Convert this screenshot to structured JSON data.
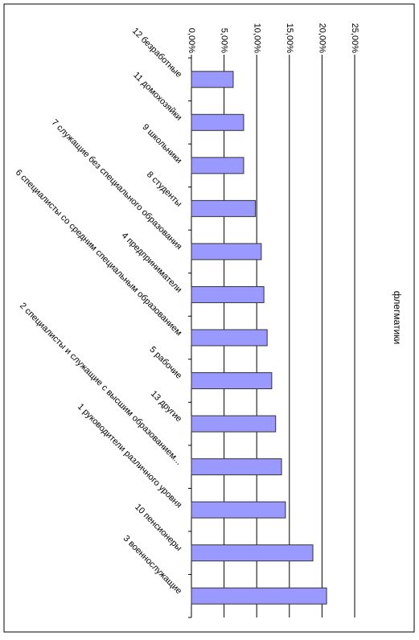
{
  "chart_data": {
    "type": "bar",
    "orientation": "horizontal",
    "title": "флегматики",
    "categories": [
      "12 безработные",
      "11 домохозяйки",
      "9 школьники",
      "8 студенты",
      "7 служащие без специального образования",
      "4 предприниматели",
      "6 специалисты со средним специальным образованием",
      "5 рабочие",
      "13 другие",
      "2 специалисты и служащие с высшим образованием...",
      "1 руководители различного уровня",
      "10 пенсионеры",
      "3 военнослужащие"
    ],
    "values": [
      6.4,
      8.0,
      8.0,
      9.8,
      10.7,
      11.1,
      11.6,
      12.3,
      12.9,
      13.8,
      14.4,
      18.6,
      20.7
    ],
    "color": "#9999ff",
    "xlim": [
      0,
      25
    ],
    "xticks": [
      {
        "value": 0,
        "label": "0,00%"
      },
      {
        "value": 5,
        "label": "5,00%"
      },
      {
        "value": 10,
        "label": "10,00%"
      },
      {
        "value": 15,
        "label": "15,00%"
      },
      {
        "value": 20,
        "label": "20,00%"
      },
      {
        "value": 25,
        "label": "25,00%"
      }
    ],
    "grid": true
  }
}
